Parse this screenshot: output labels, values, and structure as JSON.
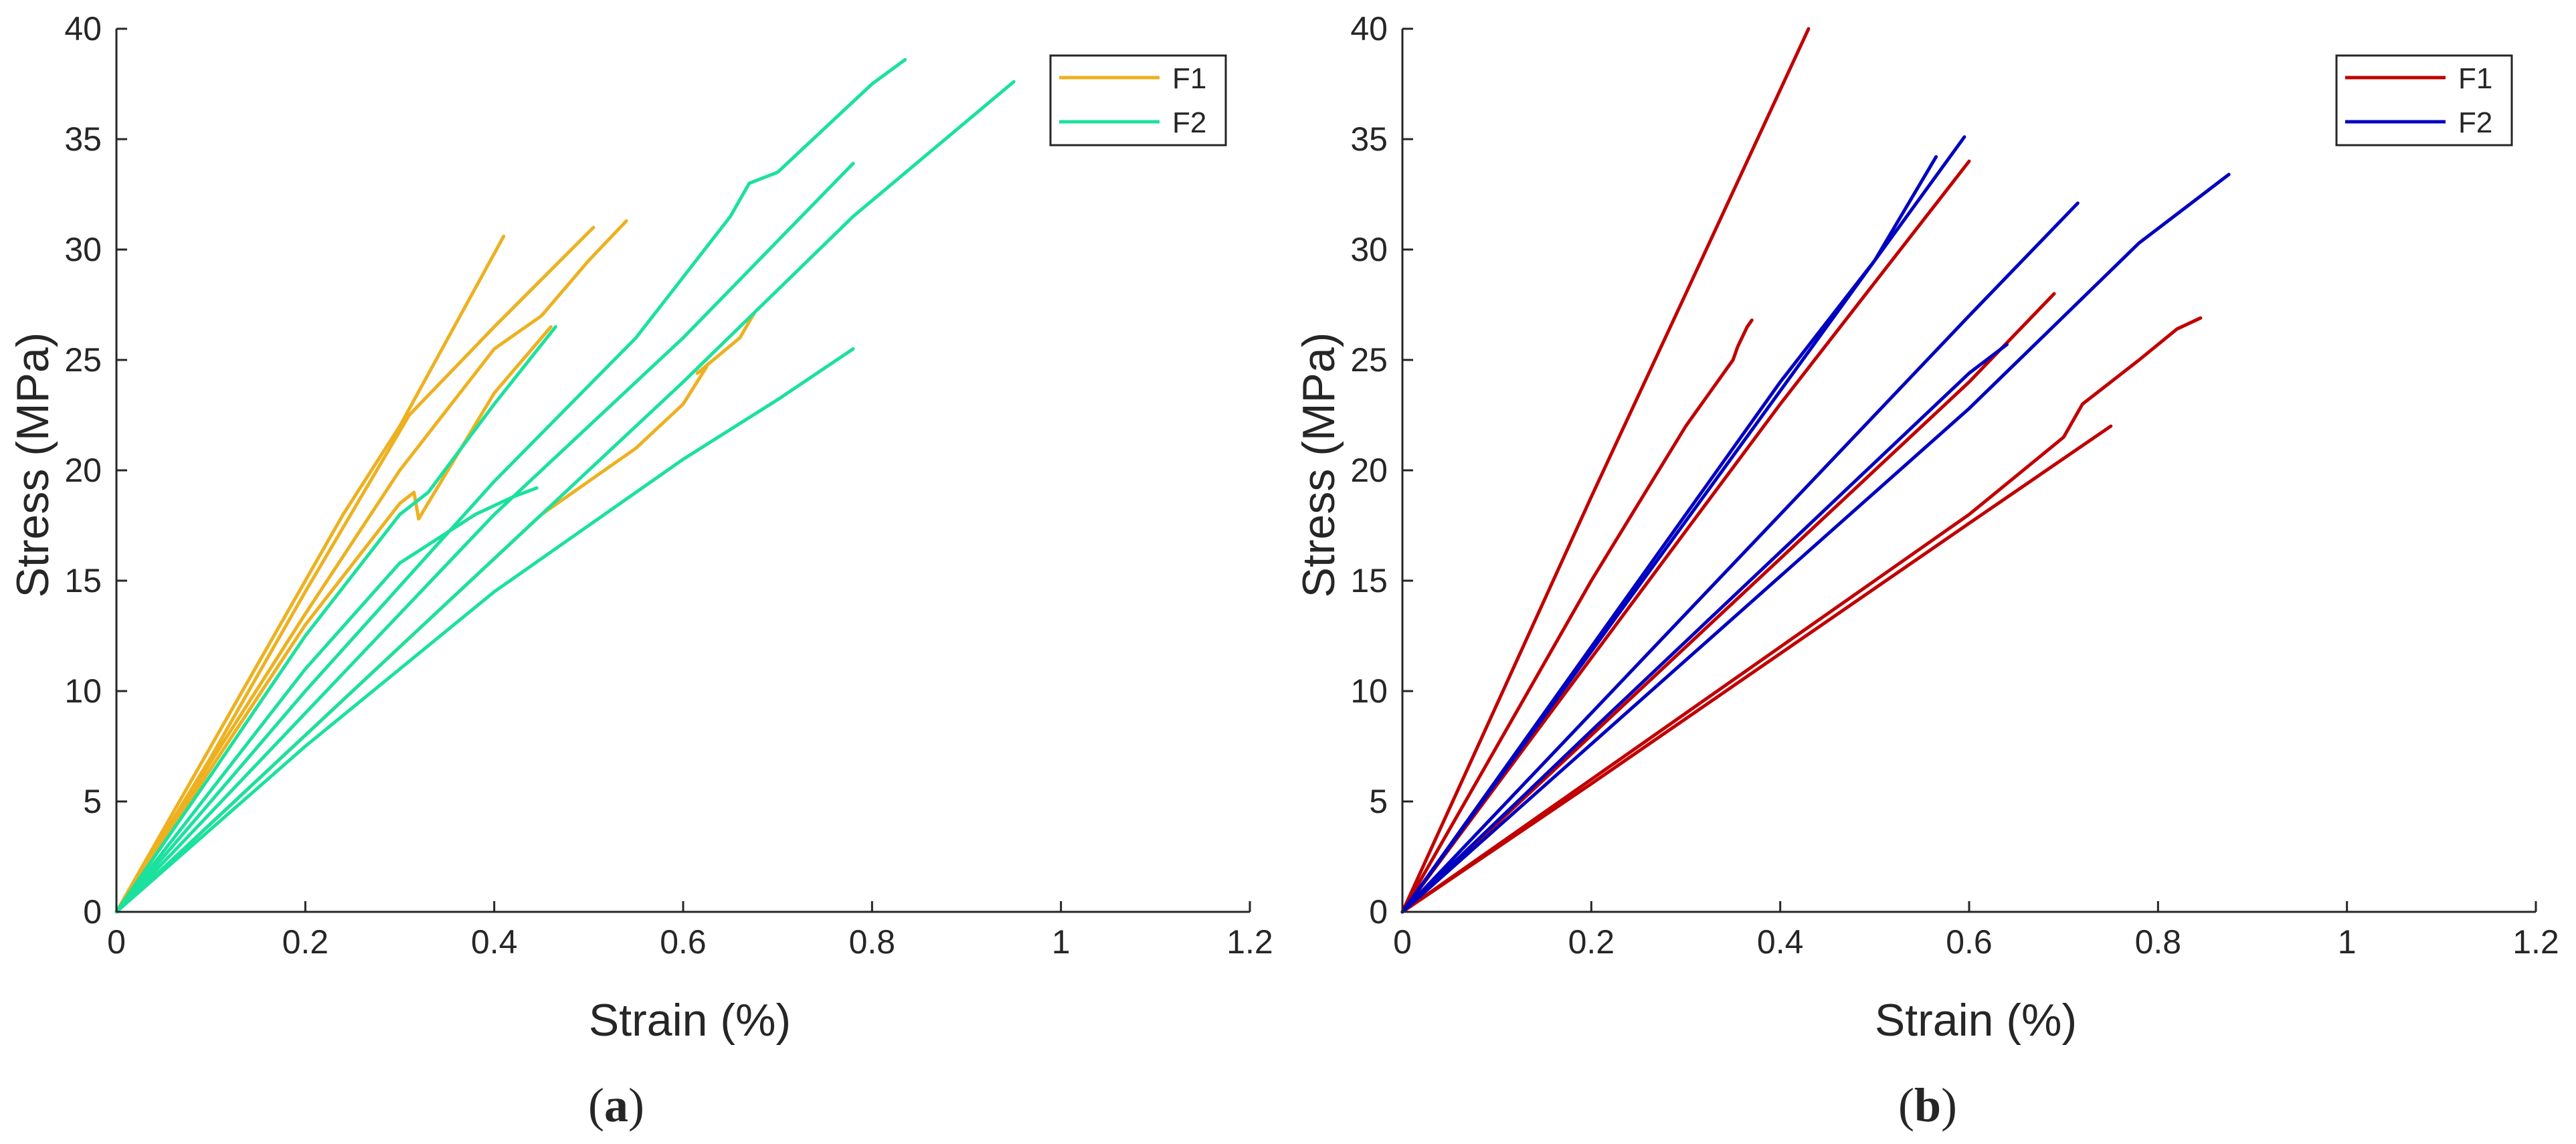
{
  "chart_data": [
    {
      "type": "line",
      "panel_label": {
        "open": "(",
        "letter": "a",
        "close": ")"
      },
      "xlabel": "Strain (%)",
      "ylabel": "Stress (MPa)",
      "xlim": [
        0,
        1.2
      ],
      "ylim": [
        0,
        40
      ],
      "xticks": [
        0,
        0.2,
        0.4,
        0.6,
        0.8,
        1,
        1.2
      ],
      "xtick_labels": [
        "0",
        "0.2",
        "0.4",
        "0.6",
        "0.8",
        "1",
        "1.2"
      ],
      "yticks": [
        0,
        5,
        10,
        15,
        20,
        25,
        30,
        35,
        40
      ],
      "ytick_labels": [
        "0",
        "5",
        "10",
        "15",
        "20",
        "25",
        "30",
        "35",
        "40"
      ],
      "legend": {
        "position": "top-right",
        "entries": [
          {
            "label": "F1",
            "color": "#EDB120"
          },
          {
            "label": "F2",
            "color": "#1BE19E"
          }
        ]
      },
      "series": [
        {
          "name": "F1",
          "color": "#EDB120",
          "points": [
            [
              0,
              0
            ],
            [
              0.12,
              9
            ],
            [
              0.24,
              18
            ],
            [
              0.3,
              22
            ],
            [
              0.41,
              30.6
            ]
          ]
        },
        {
          "name": "F1",
          "color": "#EDB120",
          "points": [
            [
              0,
              0
            ],
            [
              0.1,
              7
            ],
            [
              0.2,
              14.5
            ],
            [
              0.31,
              22.5
            ],
            [
              0.4,
              26.5
            ],
            [
              0.47,
              29.5
            ],
            [
              0.505,
              31
            ]
          ]
        },
        {
          "name": "F1",
          "color": "#EDB120",
          "points": [
            [
              0,
              0
            ],
            [
              0.1,
              6.8
            ],
            [
              0.2,
              13.5
            ],
            [
              0.3,
              20
            ],
            [
              0.4,
              25.5
            ],
            [
              0.45,
              27
            ],
            [
              0.5,
              29.5
            ],
            [
              0.54,
              31.3
            ]
          ]
        },
        {
          "name": "F1",
          "color": "#EDB120",
          "points": [
            [
              0,
              0
            ],
            [
              0.1,
              6.5
            ],
            [
              0.2,
              13
            ],
            [
              0.3,
              18.5
            ],
            [
              0.315,
              19
            ],
            [
              0.32,
              17.8
            ],
            [
              0.4,
              23.5
            ],
            [
              0.46,
              26.5
            ]
          ]
        },
        {
          "name": "F1",
          "color": "#EDB120",
          "points": [
            [
              0,
              0
            ],
            [
              0.15,
              6
            ],
            [
              0.3,
              12
            ],
            [
              0.45,
              18
            ],
            [
              0.55,
              21
            ],
            [
              0.6,
              23
            ],
            [
              0.625,
              24.7
            ],
            [
              0.615,
              24.4
            ],
            [
              0.66,
              26
            ],
            [
              0.675,
              27.1
            ]
          ]
        },
        {
          "name": "F2",
          "color": "#1BE19E",
          "points": [
            [
              0,
              0
            ],
            [
              0.1,
              6.2
            ],
            [
              0.2,
              12.5
            ],
            [
              0.3,
              18
            ],
            [
              0.33,
              19
            ],
            [
              0.4,
              23
            ],
            [
              0.465,
              26.5
            ]
          ]
        },
        {
          "name": "F2",
          "color": "#1BE19E",
          "points": [
            [
              0,
              0
            ],
            [
              0.1,
              5.5
            ],
            [
              0.2,
              11
            ],
            [
              0.3,
              15.8
            ],
            [
              0.38,
              18
            ],
            [
              0.42,
              18.8
            ],
            [
              0.445,
              19.2
            ]
          ]
        },
        {
          "name": "F2",
          "color": "#1BE19E",
          "points": [
            [
              0,
              0
            ],
            [
              0.2,
              10
            ],
            [
              0.4,
              19.5
            ],
            [
              0.55,
              26
            ],
            [
              0.65,
              31.5
            ],
            [
              0.67,
              33
            ],
            [
              0.7,
              33.5
            ],
            [
              0.8,
              37.5
            ],
            [
              0.835,
              38.6
            ]
          ]
        },
        {
          "name": "F2",
          "color": "#1BE19E",
          "points": [
            [
              0,
              0
            ],
            [
              0.2,
              9
            ],
            [
              0.4,
              18
            ],
            [
              0.6,
              26
            ],
            [
              0.78,
              33.9
            ]
          ]
        },
        {
          "name": "F2",
          "color": "#1BE19E",
          "points": [
            [
              0,
              0
            ],
            [
              0.2,
              8
            ],
            [
              0.4,
              16
            ],
            [
              0.6,
              24
            ],
            [
              0.78,
              31.5
            ],
            [
              0.95,
              37.6
            ]
          ]
        },
        {
          "name": "F2",
          "color": "#1BE19E",
          "points": [
            [
              0,
              0
            ],
            [
              0.2,
              7.5
            ],
            [
              0.4,
              14.5
            ],
            [
              0.5,
              17.5
            ],
            [
              0.6,
              20.5
            ],
            [
              0.7,
              23.2
            ],
            [
              0.78,
              25.5
            ]
          ]
        }
      ]
    },
    {
      "type": "line",
      "panel_label": {
        "open": "(",
        "letter": "b",
        "close": ")"
      },
      "xlabel": "Strain (%)",
      "ylabel": "Stress (MPa)",
      "xlim": [
        0,
        1.2
      ],
      "ylim": [
        0,
        40
      ],
      "xticks": [
        0,
        0.2,
        0.4,
        0.6,
        0.8,
        1,
        1.2
      ],
      "xtick_labels": [
        "0",
        "0.2",
        "0.4",
        "0.6",
        "0.8",
        "1",
        "1.2"
      ],
      "yticks": [
        0,
        5,
        10,
        15,
        20,
        25,
        30,
        35,
        40
      ],
      "ytick_labels": [
        "0",
        "5",
        "10",
        "15",
        "20",
        "25",
        "30",
        "35",
        "40"
      ],
      "legend": {
        "position": "top-right",
        "entries": [
          {
            "label": "F1",
            "color": "#C00000"
          },
          {
            "label": "F2",
            "color": "#0000C0"
          }
        ]
      },
      "series": [
        {
          "name": "F1",
          "color": "#C00000",
          "points": [
            [
              0,
              0
            ],
            [
              0.1,
              9.4
            ],
            [
              0.2,
              18.8
            ],
            [
              0.3,
              28
            ],
            [
              0.43,
              40
            ]
          ]
        },
        {
          "name": "F1",
          "color": "#C00000",
          "points": [
            [
              0,
              0
            ],
            [
              0.1,
              7.5
            ],
            [
              0.2,
              15
            ],
            [
              0.3,
              22
            ],
            [
              0.35,
              25
            ],
            [
              0.355,
              25.6
            ],
            [
              0.365,
              26.5
            ],
            [
              0.37,
              26.8
            ]
          ]
        },
        {
          "name": "F1",
          "color": "#C00000",
          "points": [
            [
              0,
              0
            ],
            [
              0.2,
              11.5
            ],
            [
              0.4,
              23
            ],
            [
              0.5,
              28.5
            ],
            [
              0.6,
              34
            ]
          ]
        },
        {
          "name": "F1",
          "color": "#C00000",
          "points": [
            [
              0,
              0
            ],
            [
              0.2,
              8
            ],
            [
              0.4,
              16
            ],
            [
              0.6,
              24
            ],
            [
              0.69,
              28
            ]
          ]
        },
        {
          "name": "F1",
          "color": "#C00000",
          "points": [
            [
              0,
              0
            ],
            [
              0.2,
              6
            ],
            [
              0.4,
              12
            ],
            [
              0.6,
              18
            ],
            [
              0.7,
              21.5
            ],
            [
              0.72,
              23
            ],
            [
              0.78,
              25
            ],
            [
              0.82,
              26.4
            ],
            [
              0.845,
              26.9
            ]
          ]
        },
        {
          "name": "F1",
          "color": "#C00000",
          "points": [
            [
              0,
              0
            ],
            [
              0.2,
              5.8
            ],
            [
              0.4,
              11.7
            ],
            [
              0.6,
              17.6
            ],
            [
              0.75,
              22
            ]
          ]
        },
        {
          "name": "F2",
          "color": "#0000C0",
          "points": [
            [
              0,
              0
            ],
            [
              0.2,
              12
            ],
            [
              0.4,
              24
            ],
            [
              0.5,
              29.5
            ],
            [
              0.565,
              34.2
            ]
          ]
        },
        {
          "name": "F2",
          "color": "#0000C0",
          "points": [
            [
              0,
              0
            ],
            [
              0.2,
              11.8
            ],
            [
              0.4,
              23.6
            ],
            [
              0.5,
              29.5
            ],
            [
              0.595,
              35.1
            ]
          ]
        },
        {
          "name": "F2",
          "color": "#0000C0",
          "points": [
            [
              0,
              0
            ],
            [
              0.2,
              9
            ],
            [
              0.4,
              18
            ],
            [
              0.6,
              27
            ],
            [
              0.715,
              32.1
            ]
          ]
        },
        {
          "name": "F2",
          "color": "#0000C0",
          "points": [
            [
              0,
              0
            ],
            [
              0.2,
              8.2
            ],
            [
              0.4,
              16.3
            ],
            [
              0.6,
              24.4
            ],
            [
              0.64,
              25.7
            ]
          ]
        },
        {
          "name": "F2",
          "color": "#0000C0",
          "points": [
            [
              0,
              0
            ],
            [
              0.2,
              7.6
            ],
            [
              0.4,
              15.2
            ],
            [
              0.6,
              22.8
            ],
            [
              0.78,
              30.3
            ],
            [
              0.875,
              33.4
            ]
          ]
        }
      ]
    }
  ]
}
